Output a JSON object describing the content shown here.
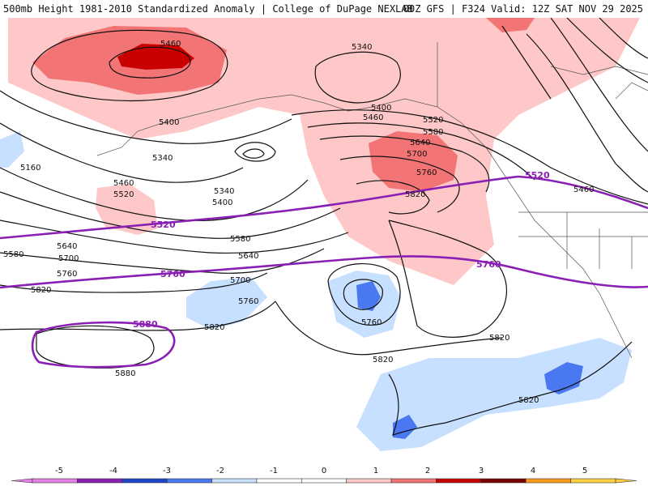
{
  "header": {
    "title_left": "500mb Height 1981-2010 Standardized Anomaly | College of DuPage NEXLAB",
    "title_right": "00Z GFS | F324 Valid: 12Z SAT NOV 29 2025"
  },
  "map": {
    "contour_labels": [
      "5460",
      "5340",
      "5400",
      "5160",
      "5340",
      "5460",
      "5520",
      "5400",
      "5340",
      "5400",
      "5460",
      "5520",
      "5580",
      "5640",
      "5700",
      "5760",
      "5820",
      "5460",
      "5580",
      "5640",
      "5700",
      "5760",
      "5580",
      "5640",
      "5700",
      "5760",
      "5820",
      "5760",
      "5820",
      "5820",
      "5880",
      "5820",
      "5820"
    ],
    "highlight_labels": [
      "5520",
      "5520",
      "5760",
      "5760",
      "5880"
    ],
    "colors": {
      "anom_pos_1": "#ffc8c8",
      "anom_pos_2": "#f27474",
      "anom_pos_3": "#c80000",
      "anom_neg_1": "#c8e0ff",
      "anom_neg_2": "#4a78f0",
      "anom_neg_3": "#1e46c8",
      "highlight_contour": "#8a1fb4"
    }
  },
  "colorbar": {
    "ticks": [
      "-5",
      "-4",
      "-3",
      "-2",
      "-1",
      "0",
      "1",
      "2",
      "3",
      "4",
      "5"
    ],
    "colors": [
      "#e680e6",
      "#8a1fb4",
      "#1e46c8",
      "#4a78f0",
      "#c8e0ff",
      "#ffffff",
      "#ffffff",
      "#ffc8c8",
      "#f27474",
      "#c80000",
      "#7a0000",
      "#ff9a1a",
      "#ffd040"
    ]
  }
}
